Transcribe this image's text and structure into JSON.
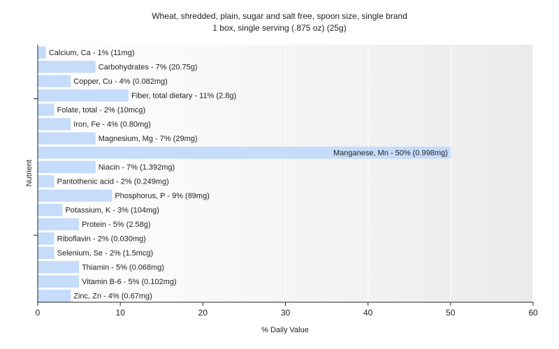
{
  "chart_data": {
    "type": "bar",
    "orientation": "horizontal",
    "title": "Wheat, shredded, plain, sugar and salt free, spoon size, single brand",
    "subtitle": "1 box, single serving (.875 oz) (25g)",
    "xlabel": "% Daily Value",
    "ylabel": "Nutrient",
    "xlim": [
      0,
      60
    ],
    "xticks": [
      0,
      10,
      20,
      30,
      40,
      50,
      60
    ],
    "grid": true,
    "bar_color": "#c6dcfb",
    "categories": [
      "Calcium, Ca",
      "Carbohydrates",
      "Copper, Cu",
      "Fiber, total dietary",
      "Folate, total",
      "Iron, Fe",
      "Magnesium, Mg",
      "Manganese, Mn",
      "Niacin",
      "Pantothenic acid",
      "Phosphorus, P",
      "Potassium, K",
      "Protein",
      "Riboflavin",
      "Selenium, Se",
      "Thiamin",
      "Vitamin B-6",
      "Zinc, Zn"
    ],
    "values": [
      1,
      7,
      4,
      11,
      2,
      4,
      7,
      50,
      7,
      2,
      9,
      3,
      5,
      2,
      2,
      5,
      5,
      4
    ],
    "labels": [
      "Calcium, Ca - 1% (11mg)",
      "Carbohydrates - 7% (20.75g)",
      "Copper, Cu - 4% (0.082mg)",
      "Fiber, total dietary - 11% (2.8g)",
      "Folate, total - 2% (10mcg)",
      "Iron, Fe - 4% (0.80mg)",
      "Magnesium, Mg - 7% (29mg)",
      "Manganese, Mn - 50% (0.998mg)",
      "Niacin - 7% (1.392mg)",
      "Pantothenic acid - 2% (0.249mg)",
      "Phosphorus, P - 9% (89mg)",
      "Potassium, K - 3% (104mg)",
      "Protein - 5% (2.58g)",
      "Riboflavin - 2% (0.030mg)",
      "Selenium, Se - 2% (1.5mcg)",
      "Thiamin - 5% (0.068mg)",
      "Vitamin B-6 - 5% (0.102mg)",
      "Zinc, Zn - 4% (0.67mg)"
    ]
  }
}
